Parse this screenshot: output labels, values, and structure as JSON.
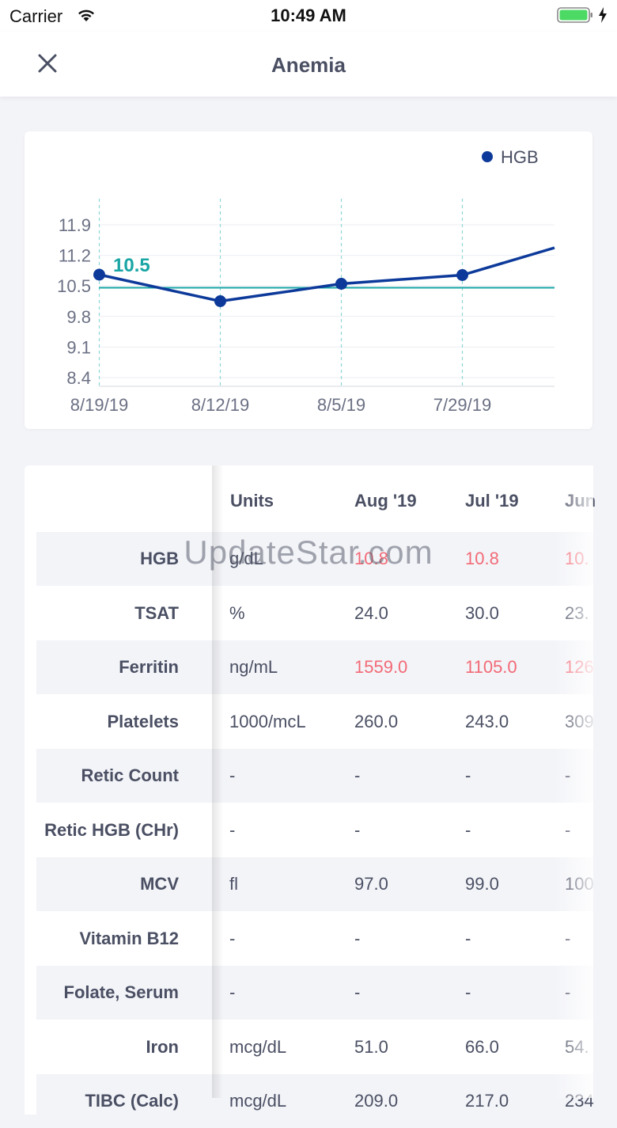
{
  "status_bar": {
    "carrier": "Carrier",
    "time": "10:49 AM",
    "icons": [
      "wifi-icon",
      "battery-icon",
      "charging-bolt-icon"
    ],
    "battery_color": "#4cd964"
  },
  "nav": {
    "title": "Anemia",
    "close_icon": "close-icon"
  },
  "chart_data": {
    "type": "line",
    "legend": [
      "HGB"
    ],
    "series": [
      {
        "name": "HGB",
        "color": "#0d3a9a",
        "x": [
          "8/19/19",
          "8/12/19",
          "8/5/19",
          "7/29/19"
        ],
        "y": [
          10.8,
          10.2,
          10.6,
          10.8
        ]
      }
    ],
    "categories": [
      "8/19/19",
      "8/12/19",
      "8/5/19",
      "7/29/19"
    ],
    "yticks": [
      "11.9",
      "11.2",
      "10.5",
      "9.8",
      "9.1",
      "8.4"
    ],
    "ylim": [
      8.4,
      12.3
    ],
    "reference_line": {
      "value": 10.5,
      "label": "10.5",
      "color": "#1aa5a5"
    },
    "legend_position": "top-right",
    "grid": true
  },
  "table": {
    "columns": [
      "Units",
      "Aug '19",
      "Jul '19",
      "Jun"
    ],
    "rows": [
      {
        "label": "HGB",
        "units": "g/dL",
        "aug": "10.8",
        "jul": "10.8",
        "jun": "10.",
        "high": [
          true,
          true,
          true
        ]
      },
      {
        "label": "TSAT",
        "units": "%",
        "aug": "24.0",
        "jul": "30.0",
        "jun": "23.",
        "high": [
          false,
          false,
          false
        ]
      },
      {
        "label": "Ferritin",
        "units": "ng/mL",
        "aug": "1559.0",
        "jul": "1105.0",
        "jun": "126",
        "high": [
          true,
          true,
          true
        ]
      },
      {
        "label": "Platelets",
        "units": "1000/mcL",
        "aug": "260.0",
        "jul": "243.0",
        "jun": "309",
        "high": [
          false,
          false,
          false
        ]
      },
      {
        "label": "Retic Count",
        "units": "-",
        "aug": "-",
        "jul": "-",
        "jun": "-",
        "high": [
          false,
          false,
          false
        ]
      },
      {
        "label": "Retic HGB (CHr)",
        "units": "-",
        "aug": "-",
        "jul": "-",
        "jun": "-",
        "high": [
          false,
          false,
          false
        ]
      },
      {
        "label": "MCV",
        "units": "fl",
        "aug": "97.0",
        "jul": "99.0",
        "jun": "100",
        "high": [
          false,
          false,
          false
        ]
      },
      {
        "label": "Vitamin B12",
        "units": "-",
        "aug": "-",
        "jul": "-",
        "jun": "-",
        "high": [
          false,
          false,
          false
        ]
      },
      {
        "label": "Folate, Serum",
        "units": "-",
        "aug": "-",
        "jul": "-",
        "jun": "-",
        "high": [
          false,
          false,
          false
        ]
      },
      {
        "label": "Iron",
        "units": "mcg/dL",
        "aug": "51.0",
        "jul": "66.0",
        "jun": "54.",
        "high": [
          false,
          false,
          false
        ]
      },
      {
        "label": "TIBC (Calc)",
        "units": "mcg/dL",
        "aug": "209.0",
        "jul": "217.0",
        "jun": "234",
        "high": [
          false,
          false,
          false
        ]
      }
    ]
  },
  "watermark": "UpdateStar.com",
  "colors": {
    "accent": "#0d3a9a",
    "reference": "#1aa5a5",
    "high_value": "#f26a76",
    "text": "#4a4f63",
    "background": "#f3f4f8"
  }
}
